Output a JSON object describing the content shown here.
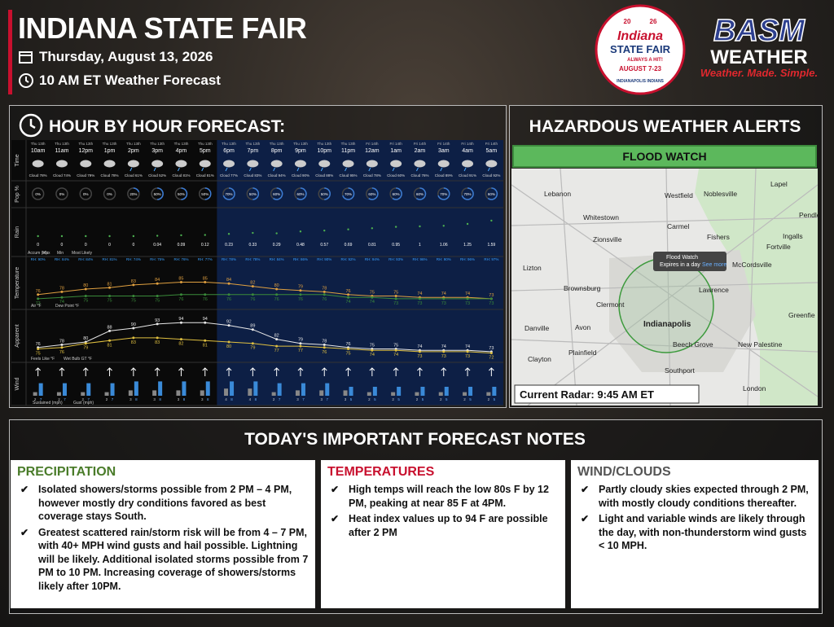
{
  "header": {
    "title": "INDIANA STATE FAIR",
    "date": "Thursday, August 13, 2026",
    "forecast_time": "10 AM ET Weather Forecast"
  },
  "logos": {
    "fair": {
      "year_left": "20",
      "year_right": "26",
      "name": "Indiana",
      "line2": "STATE FAIR",
      "tag": "ALWAYS A HIT!",
      "dates": "AUGUST 7-23",
      "sponsor": "INDIANAPOLIS INDIANS"
    },
    "basm": {
      "name": "BASM",
      "line2": "WEATHER",
      "tagline": "Weather. Made. Simple."
    }
  },
  "hourly": {
    "title": "HOUR BY HOUR FORECAST:",
    "row_labels": [
      "Time",
      "Pop %",
      "Rain",
      "Temperature",
      "Apparent",
      "Wind"
    ],
    "days": [
      "Thu 13th",
      "Thu 13th",
      "Thu 13th",
      "Thu 13th",
      "Thu 13th",
      "Thu 13th",
      "Thu 13th",
      "Thu 13th",
      "Thu 13th",
      "Thu 13th",
      "Thu 13th",
      "Thu 13th",
      "Thu 13th",
      "Thu 13th",
      "Fri 14th",
      "Fri 14th",
      "Fri 14th",
      "Fri 14th",
      "Fri 14th",
      "Fri 14th"
    ],
    "hours": [
      "10am",
      "11am",
      "12pm",
      "1pm",
      "2pm",
      "3pm",
      "4pm",
      "5pm",
      "6pm",
      "7pm",
      "8pm",
      "9pm",
      "10pm",
      "11pm",
      "12am",
      "1am",
      "2am",
      "3am",
      "4am",
      "5am"
    ],
    "clouds": [
      "Cloud 78%",
      "Cloud 74%",
      "Cloud 79%",
      "Cloud 78%",
      "Cloud 61%",
      "Cloud 52%",
      "Cloud 81%",
      "Cloud 81%",
      "Cloud 77%",
      "Cloud 83%",
      "Cloud 94%",
      "Cloud 90%",
      "Cloud 88%",
      "Cloud 95%",
      "Cloud 78%",
      "Cloud 60%",
      "Cloud 76%",
      "Cloud 89%",
      "Cloud 91%",
      "Cloud 92%"
    ],
    "pop": [
      0,
      0,
      0,
      0,
      20,
      50,
      50,
      50,
      70,
      50,
      60,
      60,
      50,
      70,
      60,
      60,
      60,
      70,
      70,
      60
    ],
    "pop_labels": [
      "0%",
      "0%",
      "0%",
      "0%",
      "20%",
      "50%",
      "50%",
      "50%",
      "70%",
      "50%",
      "60%",
      "60%",
      "50%",
      "70%",
      "60%",
      "60%",
      "60%",
      "70%",
      "70%",
      "60%"
    ],
    "rain_most_likely": [
      0,
      0,
      0,
      0,
      0,
      0.04,
      0.09,
      0.12,
      0.23,
      0.33,
      0.29,
      0.48,
      0.57,
      0.69,
      0.81,
      0.95,
      1,
      1.06,
      1.25,
      1.59
    ],
    "rain_legend": [
      "Accum (in):",
      "Max",
      "Min",
      "Most Likely"
    ],
    "rh": [
      "RH: 90%",
      "RH: 84%",
      "RH: 84%",
      "RH: 81%",
      "RH: 74%",
      "RH: 75%",
      "RH: 76%",
      "RH: 77%",
      "RH: 78%",
      "RH: 78%",
      "RH: 84%",
      "RH: 86%",
      "RH: 90%",
      "RH: 92%",
      "RH: 94%",
      "RH: 93%",
      "RH: 96%",
      "RH: 90%",
      "RH: 96%",
      "RH: 97%"
    ],
    "air_temp": [
      76,
      78,
      80,
      81,
      83,
      84,
      85,
      85,
      84,
      82,
      80,
      79,
      78,
      76,
      75,
      75,
      74,
      74,
      74,
      73
    ],
    "dew_point": [
      73,
      74,
      75,
      75,
      75,
      75,
      76,
      76,
      76,
      76,
      76,
      76,
      76,
      74,
      74,
      73,
      73,
      73,
      73,
      73
    ],
    "temp_legend": [
      "Air °F",
      "Dew Point °F"
    ],
    "feels_like": [
      76,
      78,
      80,
      88,
      90,
      93,
      94,
      94,
      92,
      89,
      82,
      79,
      78,
      76,
      75,
      75,
      74,
      74,
      74,
      73
    ],
    "wet_bulb": [
      75,
      76,
      79,
      81,
      83,
      83,
      82,
      81,
      80,
      79,
      77,
      77,
      76,
      75,
      74,
      74,
      73,
      73,
      73,
      72
    ],
    "apparent_legend": [
      "Feels Like °F",
      "Wet Bulb GT °F"
    ],
    "wind_sustained": [
      2,
      2,
      2,
      2,
      3,
      3,
      3,
      3,
      4,
      4,
      2,
      3,
      3,
      3,
      2,
      2,
      2,
      2,
      2,
      2
    ],
    "wind_gust": [
      7,
      7,
      7,
      7,
      8,
      8,
      8,
      8,
      8,
      8,
      7,
      7,
      7,
      5,
      5,
      5,
      5,
      5,
      5,
      5
    ],
    "wind_legend": [
      "Sustained (mph)",
      "Gust (mph)"
    ]
  },
  "alerts": {
    "title": "HAZARDOUS WEATHER ALERTS",
    "alert": "FLOOD WATCH",
    "popup_title": "Flood Watch",
    "popup_text": "Expires in a day",
    "popup_link": "See more",
    "radar": "Current Radar: 9:45 AM ET",
    "places": [
      "Lebanon",
      "Westfield",
      "Noblesville",
      "Lapel",
      "Whitestown",
      "Carmel",
      "Pendle",
      "Zionsville",
      "Fishers",
      "Ingalls",
      "Fortville",
      "Lizton",
      "McCordsville",
      "Brownsburg",
      "Lawrence",
      "Clermont",
      "Greenfie",
      "Indianapolis",
      "Danville",
      "Avon",
      "New Palestine",
      "Beech Grove",
      "Plainfield",
      "Clayton",
      "Southport",
      "London"
    ]
  },
  "notes": {
    "title": "TODAY'S IMPORTANT FORECAST NOTES",
    "sections": [
      {
        "heading": "PRECIPITATION",
        "items": [
          "Isolated showers/storms possible from 2 PM – 4 PM, however mostly dry conditions favored as best coverage stays South.",
          "Greatest scattered rain/storm risk will be from 4 – 7 PM, with 40+ MPH wind gusts and hail possible. Lightning will be likely. Additional isolated storms possible from 7 PM to 10 PM. Increasing coverage of showers/storms likely after 10PM."
        ]
      },
      {
        "heading": "TEMPERATURES",
        "items": [
          "High temps will reach the low 80s F by 12 PM, peaking at near 85 F at 4PM.",
          "Heat index values up to 94 F are possible after 2 PM"
        ]
      },
      {
        "heading": "WIND/CLOUDS",
        "items": [
          "Partly cloudy skies expected through 2 PM, with mostly cloudy conditions thereafter.",
          "Light and variable winds are likely through the day, with non-thunderstorm wind gusts < 10 MPH."
        ]
      }
    ]
  }
}
